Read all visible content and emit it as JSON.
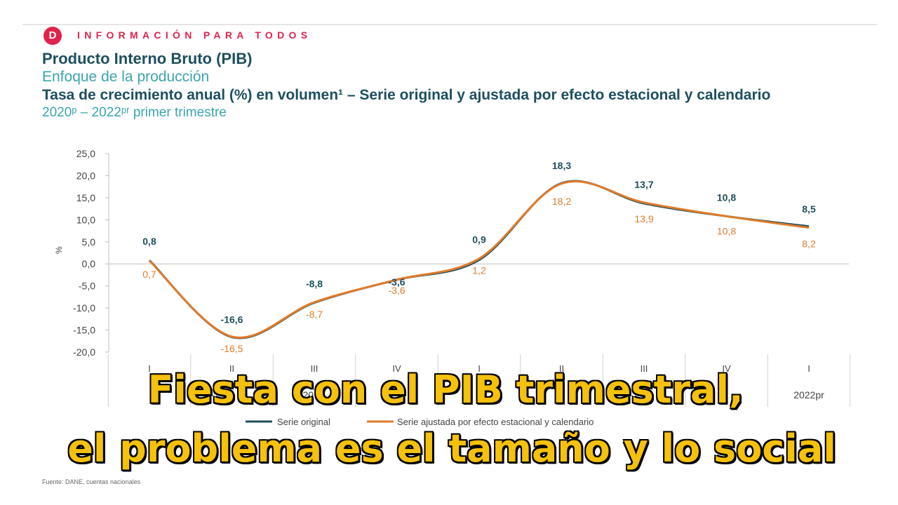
{
  "brand": {
    "logo_letter": "D",
    "tagline": "INFORMACIÓN PARA TODOS",
    "color": "#e0234e"
  },
  "header": {
    "title": "Producto Interno Bruto (PIB)",
    "subtitle": "Enfoque de la producción",
    "description": "Tasa de crecimiento anual (%) en volumen¹ – Serie original y ajustada por efecto estacional y calendario",
    "period": "2020ᵖ – 2022ᵖʳ primer trimestre"
  },
  "source": "Fuente: DANE, cuentas nacionales",
  "overlay": {
    "line1": "Fiesta con el PIB trimestral,",
    "line2": "el problema es el tamaño y lo social",
    "color": "#f5c10a"
  },
  "chart_data": {
    "type": "line",
    "ylabel": "%",
    "ylim": [
      -20,
      25
    ],
    "yticks": [
      "25,0",
      "20,0",
      "15,0",
      "10,0",
      "5,0",
      "0,0",
      "-5,0",
      "-10,0",
      "-15,0",
      "-20,0"
    ],
    "ytick_values": [
      25,
      20,
      15,
      10,
      5,
      0,
      -5,
      -10,
      -15,
      -20
    ],
    "categories": [
      "I",
      "II",
      "III",
      "IV",
      "I",
      "II",
      "III",
      "IV",
      "I"
    ],
    "year_labels": [
      {
        "label": "20",
        "span": [
          0,
          3
        ]
      },
      {
        "label": "2022pr",
        "span": [
          8,
          8
        ]
      }
    ],
    "series": [
      {
        "name": "Serie original",
        "color": "#1e4f5e",
        "values": [
          0.8,
          -16.6,
          -8.8,
          -3.6,
          0.9,
          18.3,
          13.7,
          10.8,
          8.5
        ],
        "labels": [
          "0,8",
          "-16,6",
          "-8,8",
          "-3,6",
          "0,9",
          "18,3",
          "13,7",
          "10,8",
          "8,5"
        ]
      },
      {
        "name": "Serie ajustada por efecto estacional y calendario",
        "color": "#e07b2a",
        "values": [
          0.7,
          -16.5,
          -8.7,
          -3.6,
          1.2,
          18.2,
          13.9,
          10.8,
          8.2
        ],
        "labels": [
          "0,7",
          "-16,5",
          "-8,7",
          "-3,6",
          "1,2",
          "18,2",
          "13,9",
          "10,8",
          "8,2"
        ]
      }
    ],
    "legend_position": "bottom-left",
    "grid": false
  }
}
